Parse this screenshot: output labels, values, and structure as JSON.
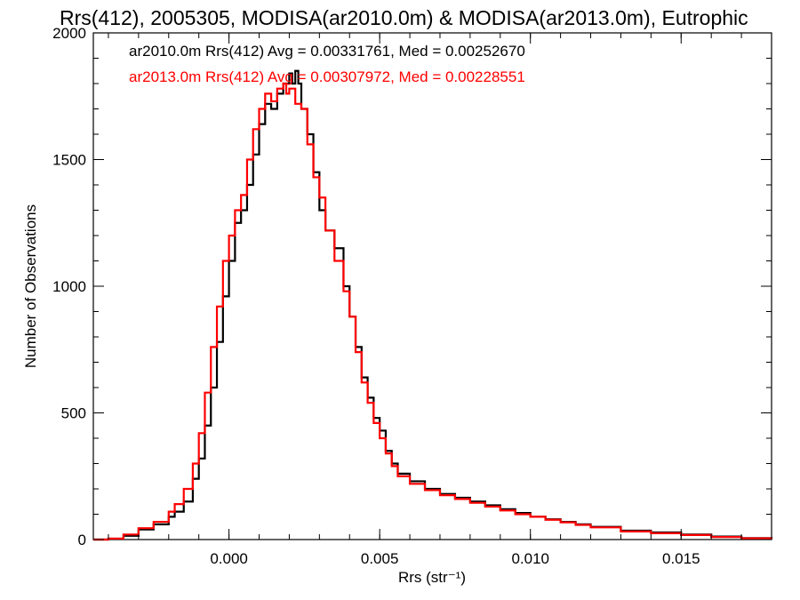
{
  "chart_data": {
    "type": "line",
    "title": "Rrs(412), 2005305, MODISA(ar2010.0m) & MODISA(ar2013.0m), Eutrophic",
    "xlabel": "Rrs (str⁻¹)",
    "ylabel": "Number of Observations",
    "xlim": [
      -0.0045,
      0.018
    ],
    "ylim": [
      0,
      2000
    ],
    "x_ticks": [
      0.0,
      0.005,
      0.01,
      0.015
    ],
    "x_tick_labels": [
      "0.000",
      "0.005",
      "0.010",
      "0.015"
    ],
    "y_ticks": [
      0,
      500,
      1000,
      1500,
      2000
    ],
    "y_tick_labels": [
      "0",
      "500",
      "1000",
      "1500",
      "2000"
    ],
    "legend_position": "top-left",
    "grid": false,
    "series": [
      {
        "name": "ar2010.0m",
        "legend_text": "ar2010.0m Rrs(412) Avg = 0.00331761, Med = 0.00252670",
        "color": "#000000",
        "step": true,
        "x": [
          -0.0045,
          -0.004,
          -0.0035,
          -0.003,
          -0.0025,
          -0.002,
          -0.0018,
          -0.0015,
          -0.0012,
          -0.001,
          -0.0008,
          -0.0006,
          -0.0004,
          -0.0002,
          0.0,
          0.0002,
          0.0004,
          0.0006,
          0.0008,
          0.001,
          0.0012,
          0.0014,
          0.0016,
          0.0018,
          0.002,
          0.0021,
          0.0022,
          0.0023,
          0.0024,
          0.0026,
          0.0028,
          0.003,
          0.0032,
          0.0035,
          0.0038,
          0.004,
          0.0042,
          0.0044,
          0.0046,
          0.0048,
          0.005,
          0.0052,
          0.0054,
          0.0056,
          0.006,
          0.0065,
          0.007,
          0.0075,
          0.008,
          0.0085,
          0.009,
          0.0095,
          0.01,
          0.0105,
          0.011,
          0.0115,
          0.012,
          0.013,
          0.014,
          0.015,
          0.016,
          0.017,
          0.018
        ],
        "y": [
          0,
          3,
          15,
          40,
          60,
          90,
          110,
          150,
          240,
          320,
          450,
          600,
          780,
          960,
          1100,
          1250,
          1300,
          1400,
          1520,
          1640,
          1720,
          1700,
          1760,
          1800,
          1840,
          1800,
          1850,
          1800,
          1700,
          1600,
          1450,
          1300,
          1220,
          1150,
          1000,
          880,
          760,
          640,
          560,
          480,
          430,
          350,
          300,
          260,
          230,
          200,
          180,
          165,
          150,
          135,
          120,
          105,
          90,
          80,
          70,
          60,
          50,
          35,
          28,
          20,
          12,
          6,
          3
        ]
      },
      {
        "name": "ar2013.0m",
        "legend_text": "ar2013.0m Rrs(412) Avg = 0.00307972, Med = 0.00228551",
        "color": "#ff0000",
        "step": true,
        "x": [
          -0.0045,
          -0.004,
          -0.0035,
          -0.003,
          -0.0025,
          -0.002,
          -0.0018,
          -0.0015,
          -0.0012,
          -0.001,
          -0.0008,
          -0.0006,
          -0.0004,
          -0.0002,
          0.0,
          0.0002,
          0.0004,
          0.0006,
          0.0008,
          0.001,
          0.0012,
          0.0014,
          0.0016,
          0.0018,
          0.0019,
          0.002,
          0.0022,
          0.0024,
          0.0026,
          0.0028,
          0.003,
          0.0032,
          0.0035,
          0.0038,
          0.004,
          0.0042,
          0.0044,
          0.0046,
          0.0048,
          0.005,
          0.0052,
          0.0054,
          0.0056,
          0.006,
          0.0065,
          0.007,
          0.0075,
          0.008,
          0.0085,
          0.009,
          0.0095,
          0.01,
          0.0105,
          0.011,
          0.0115,
          0.012,
          0.013,
          0.014,
          0.015,
          0.016,
          0.017,
          0.018
        ],
        "y": [
          0,
          4,
          20,
          45,
          70,
          110,
          140,
          200,
          300,
          420,
          580,
          760,
          920,
          1100,
          1200,
          1300,
          1360,
          1500,
          1620,
          1700,
          1760,
          1730,
          1780,
          1800,
          1760,
          1780,
          1720,
          1700,
          1560,
          1430,
          1350,
          1220,
          1100,
          980,
          880,
          740,
          620,
          540,
          460,
          400,
          340,
          290,
          250,
          220,
          195,
          175,
          160,
          145,
          130,
          115,
          100,
          90,
          78,
          68,
          58,
          48,
          32,
          25,
          18,
          10,
          5,
          2
        ]
      }
    ]
  }
}
